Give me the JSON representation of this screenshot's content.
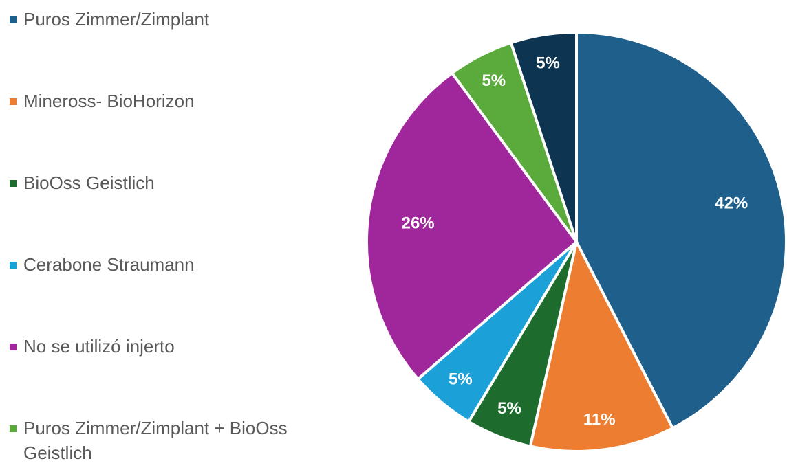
{
  "chart_data": {
    "type": "pie",
    "categories": [
      "Puros Zimmer/Zimplant",
      "Mineross- BioHorizon",
      "BioOss Geistlich",
      "Cerabone Straumann",
      "No se utilizó injerto",
      "Puros Zimmer/Zimplant + BioOss Geistlich",
      null
    ],
    "values": [
      42,
      11,
      5,
      5,
      26,
      5,
      5
    ],
    "value_labels": [
      "42%",
      "11%",
      "5%",
      "5%",
      "26%",
      "5%",
      "5%"
    ],
    "colors": [
      "#1f5f8b",
      "#ed7d31",
      "#1e6b2e",
      "#1ba1d8",
      "#a0279b",
      "#5aab3b",
      "#0d3552"
    ],
    "legend": "left"
  }
}
